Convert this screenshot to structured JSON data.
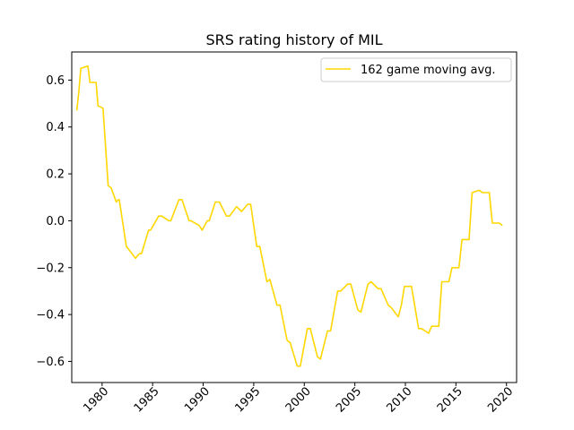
{
  "chart_data": {
    "type": "line",
    "title": "SRS rating history of MIL",
    "xlabel": "",
    "ylabel": "",
    "xlim": [
      1977.0,
      2021.0
    ],
    "ylim": [
      -0.69,
      0.72
    ],
    "x_ticks": [
      1980,
      1985,
      1990,
      1995,
      2000,
      2005,
      2010,
      2015,
      2020
    ],
    "x_tick_labels": [
      "1980",
      "1985",
      "1990",
      "1995",
      "2000",
      "2005",
      "2010",
      "2015",
      "2020"
    ],
    "y_ticks": [
      -0.6,
      -0.4,
      -0.2,
      0.0,
      0.2,
      0.4,
      0.6
    ],
    "y_tick_labels": [
      "−0.6",
      "−0.4",
      "−0.2",
      "0.0",
      "0.2",
      "0.4",
      "0.6"
    ],
    "grid": false,
    "legend_position": "top-right",
    "series": [
      {
        "name": "162 game moving avg.",
        "color": "#FFD700",
        "x": [
          1977.5,
          1977.7,
          1977.9,
          1978.6,
          1978.8,
          1979.4,
          1979.6,
          1980.1,
          1980.6,
          1980.9,
          1981.4,
          1981.6,
          1981.7,
          1982.4,
          1982.6,
          1983.3,
          1983.7,
          1983.9,
          1984.6,
          1984.8,
          1985.6,
          1985.9,
          1986.6,
          1986.8,
          1987.6,
          1987.9,
          1988.6,
          1988.8,
          1989.6,
          1989.9,
          1990.4,
          1990.6,
          1991.2,
          1991.6,
          1992.3,
          1992.6,
          1993.3,
          1993.8,
          1994.4,
          1994.7,
          1995.3,
          1995.6,
          1996.3,
          1996.6,
          1997.3,
          1997.6,
          1998.3,
          1998.6,
          1999.3,
          1999.6,
          2000.3,
          2000.6,
          2001.3,
          2001.6,
          2002.3,
          2002.6,
          2003.3,
          2003.6,
          2004.3,
          2004.6,
          2005.3,
          2005.6,
          2006.3,
          2006.6,
          2007.3,
          2007.6,
          2008.3,
          2008.6,
          2009.3,
          2009.6,
          2009.9,
          2010.3,
          2010.6,
          2011.3,
          2011.6,
          2012.3,
          2012.6,
          2013.3,
          2013.6,
          2014.3,
          2014.6,
          2015.3,
          2015.6,
          2016.3,
          2016.6,
          2017.3,
          2017.6,
          2018.3,
          2018.6,
          2019.3,
          2019.6
        ],
        "y": [
          0.47,
          0.55,
          0.65,
          0.66,
          0.59,
          0.59,
          0.49,
          0.48,
          0.15,
          0.14,
          0.08,
          0.09,
          0.09,
          -0.11,
          -0.12,
          -0.16,
          -0.14,
          -0.14,
          -0.04,
          -0.04,
          0.02,
          0.02,
          0.0,
          0.0,
          0.09,
          0.09,
          0.0,
          0.0,
          -0.02,
          -0.04,
          0.0,
          0.0,
          0.08,
          0.08,
          0.02,
          0.02,
          0.06,
          0.04,
          0.07,
          0.07,
          -0.11,
          -0.11,
          -0.26,
          -0.25,
          -0.36,
          -0.36,
          -0.51,
          -0.52,
          -0.62,
          -0.62,
          -0.46,
          -0.46,
          -0.58,
          -0.59,
          -0.47,
          -0.47,
          -0.3,
          -0.3,
          -0.27,
          -0.27,
          -0.38,
          -0.39,
          -0.27,
          -0.26,
          -0.29,
          -0.29,
          -0.36,
          -0.37,
          -0.41,
          -0.36,
          -0.28,
          -0.28,
          -0.28,
          -0.46,
          -0.46,
          -0.48,
          -0.45,
          -0.45,
          -0.26,
          -0.26,
          -0.2,
          -0.2,
          -0.08,
          -0.08,
          0.12,
          0.13,
          0.12,
          0.12,
          -0.01,
          -0.01,
          -0.02
        ]
      }
    ]
  }
}
